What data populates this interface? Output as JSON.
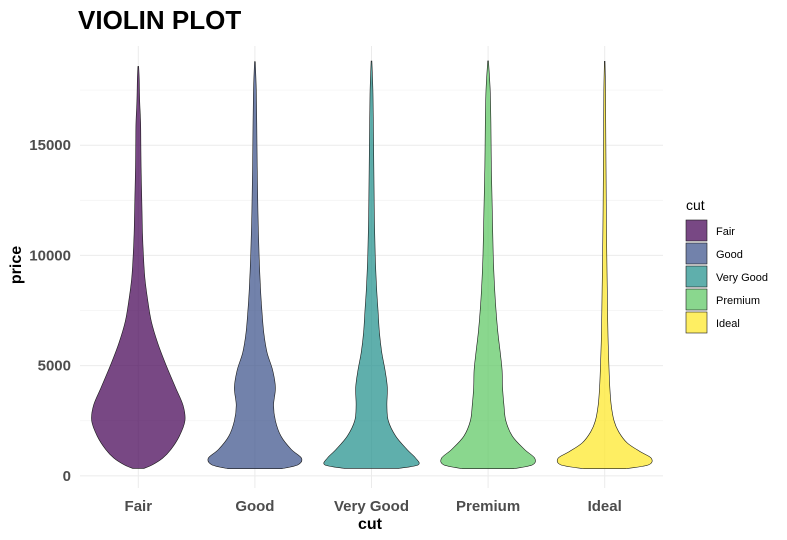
{
  "chart_data": {
    "type": "violin",
    "title": "VIOLIN PLOT",
    "xlabel": "cut",
    "ylabel": "price",
    "categories": [
      "Fair",
      "Good",
      "Very Good",
      "Premium",
      "Ideal"
    ],
    "ylim": [
      -550,
      19500
    ],
    "y_ticks": [
      0,
      5000,
      10000,
      15000
    ],
    "y_tick_labels": [
      "0",
      "5000",
      "10000",
      "15000"
    ],
    "grid": true,
    "legend": {
      "title": "cut",
      "position": "right",
      "items": [
        "Fair",
        "Good",
        "Very Good",
        "Premium",
        "Ideal"
      ]
    },
    "colors": [
      "#440154",
      "#3B528B",
      "#21908C",
      "#5DC863",
      "#FDE725"
    ],
    "series": [
      {
        "name": "Fair",
        "min": 337,
        "max": 18574,
        "profile": [
          [
            337,
            0.12
          ],
          [
            500,
            0.3
          ],
          [
            800,
            0.52
          ],
          [
            1200,
            0.7
          ],
          [
            1800,
            0.88
          ],
          [
            2500,
            1.0
          ],
          [
            3200,
            0.96
          ],
          [
            4000,
            0.8
          ],
          [
            5000,
            0.6
          ],
          [
            6000,
            0.42
          ],
          [
            7000,
            0.28
          ],
          [
            8000,
            0.2
          ],
          [
            9000,
            0.14
          ],
          [
            10000,
            0.11
          ],
          [
            11000,
            0.09
          ],
          [
            12000,
            0.08
          ],
          [
            13000,
            0.07
          ],
          [
            14000,
            0.06
          ],
          [
            15000,
            0.055
          ],
          [
            16000,
            0.05
          ],
          [
            17000,
            0.03
          ],
          [
            18000,
            0.02
          ],
          [
            18574,
            0.008
          ]
        ]
      },
      {
        "name": "Good",
        "min": 327,
        "max": 18788,
        "profile": [
          [
            327,
            0.58
          ],
          [
            500,
            0.92
          ],
          [
            800,
            1.0
          ],
          [
            1200,
            0.78
          ],
          [
            1800,
            0.56
          ],
          [
            2500,
            0.44
          ],
          [
            3200,
            0.4
          ],
          [
            4000,
            0.44
          ],
          [
            4800,
            0.38
          ],
          [
            5600,
            0.26
          ],
          [
            6500,
            0.19
          ],
          [
            7500,
            0.15
          ],
          [
            8500,
            0.12
          ],
          [
            10000,
            0.09
          ],
          [
            12000,
            0.065
          ],
          [
            14000,
            0.05
          ],
          [
            16000,
            0.04
          ],
          [
            17500,
            0.03
          ],
          [
            18788,
            0.008
          ]
        ]
      },
      {
        "name": "Very Good",
        "min": 336,
        "max": 18818,
        "profile": [
          [
            336,
            0.58
          ],
          [
            500,
            1.0
          ],
          [
            800,
            0.95
          ],
          [
            1200,
            0.76
          ],
          [
            1800,
            0.52
          ],
          [
            2500,
            0.36
          ],
          [
            3200,
            0.33
          ],
          [
            4000,
            0.34
          ],
          [
            4800,
            0.29
          ],
          [
            5600,
            0.22
          ],
          [
            6500,
            0.17
          ],
          [
            7500,
            0.14
          ],
          [
            8500,
            0.11
          ],
          [
            10000,
            0.08
          ],
          [
            12000,
            0.06
          ],
          [
            14000,
            0.05
          ],
          [
            16000,
            0.04
          ],
          [
            17500,
            0.03
          ],
          [
            18818,
            0.008
          ]
        ]
      },
      {
        "name": "Premium",
        "min": 326,
        "max": 18823,
        "profile": [
          [
            326,
            0.55
          ],
          [
            500,
            0.95
          ],
          [
            800,
            1.0
          ],
          [
            1200,
            0.78
          ],
          [
            1800,
            0.52
          ],
          [
            2500,
            0.38
          ],
          [
            3200,
            0.34
          ],
          [
            4000,
            0.31
          ],
          [
            4800,
            0.3
          ],
          [
            5600,
            0.26
          ],
          [
            6500,
            0.21
          ],
          [
            7500,
            0.17
          ],
          [
            8500,
            0.14
          ],
          [
            10000,
            0.11
          ],
          [
            12000,
            0.09
          ],
          [
            14000,
            0.07
          ],
          [
            16000,
            0.06
          ],
          [
            17500,
            0.045
          ],
          [
            18823,
            0.008
          ]
        ]
      },
      {
        "name": "Ideal",
        "min": 326,
        "max": 18806,
        "profile": [
          [
            326,
            0.45
          ],
          [
            500,
            0.94
          ],
          [
            800,
            1.0
          ],
          [
            1100,
            0.76
          ],
          [
            1500,
            0.48
          ],
          [
            2000,
            0.3
          ],
          [
            2500,
            0.2
          ],
          [
            3200,
            0.14
          ],
          [
            4000,
            0.11
          ],
          [
            5000,
            0.09
          ],
          [
            6000,
            0.075
          ],
          [
            7000,
            0.065
          ],
          [
            8500,
            0.055
          ],
          [
            10000,
            0.045
          ],
          [
            12000,
            0.035
          ],
          [
            14000,
            0.028
          ],
          [
            16000,
            0.022
          ],
          [
            17500,
            0.018
          ],
          [
            18806,
            0.006
          ]
        ]
      }
    ]
  }
}
